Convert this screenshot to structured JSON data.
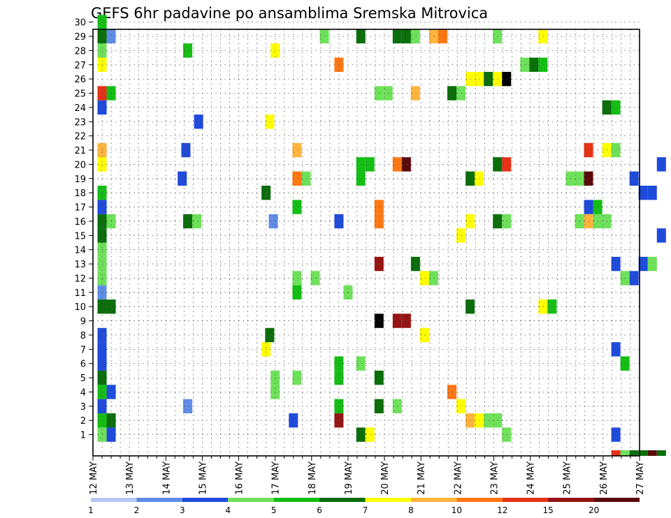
{
  "chart_data": {
    "type": "heatmap",
    "title": "GEFS 6hr padavine po ansamblima Sremska Mitrovica",
    "xlabel": "",
    "ylabel": "",
    "x_ticks": [
      "12 MAY",
      "13 MAY",
      "14 MAY",
      "15 MAY",
      "16 MAY",
      "17 MAY",
      "18 MAY",
      "19 MAY",
      "20 MAY",
      "21 MAY",
      "22 MAY",
      "23 MAY",
      "24 MAY",
      "25 MAY",
      "26 MAY",
      "27 MAY"
    ],
    "xlim": [
      0,
      15
    ],
    "ylim": [
      0,
      30
    ],
    "y_ticks": [
      1,
      2,
      3,
      4,
      5,
      6,
      7,
      8,
      9,
      10,
      11,
      12,
      13,
      14,
      15,
      16,
      17,
      18,
      19,
      20,
      21,
      22,
      23,
      24,
      25,
      26,
      27,
      28,
      29,
      30
    ],
    "grid": true,
    "legend_position": "bottom",
    "colorbar": {
      "labels": [
        "1",
        "2",
        "3",
        "4",
        "5",
        "6",
        "7",
        "8",
        "10",
        "12",
        "15",
        "20"
      ],
      "colors": [
        "#b4c8f5",
        "#5f8ce6",
        "#1e4bdc",
        "#6ee15a",
        "#14be14",
        "#0a6e0a",
        "#ffff00",
        "#ffb43c",
        "#ff7814",
        "#e63214",
        "#961414",
        "#5a0a0a"
      ]
    },
    "cells": [
      [
        0.25,
        1,
        3
      ],
      [
        0.25,
        2,
        4
      ],
      [
        0.25,
        3,
        2
      ],
      [
        0.25,
        4,
        4
      ],
      [
        0.25,
        5,
        5
      ],
      [
        0.25,
        6,
        2
      ],
      [
        0.25,
        7,
        2
      ],
      [
        0.25,
        8,
        2
      ],
      [
        0.25,
        10,
        5
      ],
      [
        0.25,
        11,
        1
      ],
      [
        0.25,
        12,
        3
      ],
      [
        0.25,
        13,
        3
      ],
      [
        0.25,
        14,
        3
      ],
      [
        0.25,
        15,
        5
      ],
      [
        0.25,
        16,
        5
      ],
      [
        0.25,
        17,
        2
      ],
      [
        0.25,
        18,
        4
      ],
      [
        0.25,
        20,
        6
      ],
      [
        0.25,
        21,
        7
      ],
      [
        0.25,
        24,
        2
      ],
      [
        0.25,
        25,
        9
      ],
      [
        0.25,
        27,
        6
      ],
      [
        0.25,
        28,
        3
      ],
      [
        0.25,
        29,
        5
      ],
      [
        0.25,
        30,
        4
      ],
      [
        0.5,
        1,
        2
      ],
      [
        0.5,
        2,
        5
      ],
      [
        0.5,
        4,
        2
      ],
      [
        0.5,
        10,
        5
      ],
      [
        0.5,
        16,
        3
      ],
      [
        0.5,
        25,
        4
      ],
      [
        0.5,
        29,
        1
      ],
      [
        2.6,
        3,
        1
      ],
      [
        2.6,
        16,
        5
      ],
      [
        2.6,
        28,
        4
      ],
      [
        2.85,
        16,
        3
      ],
      [
        2.9,
        23,
        2
      ],
      [
        2.55,
        21,
        2
      ],
      [
        2.45,
        19,
        2
      ],
      [
        4.75,
        7,
        6
      ],
      [
        4.85,
        8,
        5
      ],
      [
        4.75,
        18,
        5
      ],
      [
        4.85,
        23,
        6
      ],
      [
        5.0,
        28,
        6
      ],
      [
        5.0,
        4,
        3
      ],
      [
        5.0,
        5,
        3
      ],
      [
        4.95,
        16,
        1
      ],
      [
        5.6,
        5,
        3
      ],
      [
        5.6,
        12,
        3
      ],
      [
        5.6,
        19,
        8
      ],
      [
        5.85,
        19,
        3
      ],
      [
        5.6,
        21,
        7
      ],
      [
        5.6,
        11,
        4
      ],
      [
        5.6,
        17,
        4
      ],
      [
        5.5,
        2,
        2
      ],
      [
        6.1,
        12,
        3
      ],
      [
        6.35,
        29,
        3
      ],
      [
        6.75,
        2,
        10
      ],
      [
        6.75,
        3,
        4
      ],
      [
        6.75,
        5,
        4
      ],
      [
        6.75,
        6,
        4
      ],
      [
        6.75,
        16,
        2
      ],
      [
        6.75,
        27,
        8
      ],
      [
        7.0,
        11,
        3
      ],
      [
        7.35,
        1,
        5
      ],
      [
        7.6,
        1,
        6
      ],
      [
        7.35,
        6,
        3
      ],
      [
        7.35,
        19,
        4
      ],
      [
        7.35,
        20,
        4
      ],
      [
        7.6,
        20,
        4
      ],
      [
        7.35,
        29,
        5
      ],
      [
        7.85,
        3,
        5
      ],
      [
        7.85,
        5,
        5
      ],
      [
        7.85,
        9,
        12
      ],
      [
        7.85,
        13,
        10
      ],
      [
        7.85,
        16,
        8
      ],
      [
        7.85,
        17,
        8
      ],
      [
        7.85,
        25,
        3
      ],
      [
        8.1,
        25,
        3
      ],
      [
        8.35,
        3,
        3
      ],
      [
        8.35,
        9,
        10
      ],
      [
        8.35,
        20,
        8
      ],
      [
        8.6,
        20,
        11
      ],
      [
        8.6,
        9,
        10
      ],
      [
        8.35,
        29,
        5
      ],
      [
        8.6,
        29,
        5
      ],
      [
        8.85,
        13,
        5
      ],
      [
        8.85,
        29,
        3
      ],
      [
        8.85,
        25,
        7
      ],
      [
        9.1,
        8,
        6
      ],
      [
        9.1,
        12,
        6
      ],
      [
        9.35,
        12,
        3
      ],
      [
        9.35,
        29,
        7
      ],
      [
        9.6,
        29,
        8
      ],
      [
        9.85,
        4,
        8
      ],
      [
        9.85,
        25,
        5
      ],
      [
        10.1,
        25,
        3
      ],
      [
        10.35,
        26,
        6
      ],
      [
        10.6,
        26,
        6
      ],
      [
        10.85,
        26,
        5
      ],
      [
        11.1,
        26,
        6
      ],
      [
        11.35,
        26,
        12
      ],
      [
        10.35,
        2,
        7
      ],
      [
        10.6,
        2,
        6
      ],
      [
        10.85,
        2,
        3
      ],
      [
        11.1,
        2,
        3
      ],
      [
        11.35,
        1,
        3
      ],
      [
        10.1,
        3,
        6
      ],
      [
        10.35,
        10,
        5
      ],
      [
        10.1,
        15,
        6
      ],
      [
        10.35,
        16,
        6
      ],
      [
        10.6,
        19,
        6
      ],
      [
        10.35,
        19,
        5
      ],
      [
        11.1,
        20,
        5
      ],
      [
        11.35,
        20,
        9
      ],
      [
        11.1,
        29,
        3
      ],
      [
        11.85,
        27,
        3
      ],
      [
        12.1,
        27,
        5
      ],
      [
        12.35,
        27,
        4
      ],
      [
        12.35,
        29,
        6
      ],
      [
        11.1,
        16,
        5
      ],
      [
        11.35,
        16,
        3
      ],
      [
        12.35,
        10,
        6
      ],
      [
        12.6,
        10,
        4
      ],
      [
        13.1,
        19,
        3
      ],
      [
        13.35,
        19,
        3
      ],
      [
        13.6,
        19,
        11
      ],
      [
        13.35,
        16,
        3
      ],
      [
        13.6,
        16,
        7
      ],
      [
        13.85,
        16,
        3
      ],
      [
        14.1,
        16,
        3
      ],
      [
        13.6,
        21,
        9
      ],
      [
        14.1,
        21,
        6
      ],
      [
        14.35,
        21,
        3
      ],
      [
        14.1,
        24,
        5
      ],
      [
        14.35,
        24,
        4
      ],
      [
        13.6,
        17,
        2
      ],
      [
        13.85,
        17,
        4
      ],
      [
        14.35,
        1,
        2
      ],
      [
        14.35,
        0,
        9
      ],
      [
        14.6,
        0,
        3
      ],
      [
        14.85,
        0,
        5
      ],
      [
        15.1,
        0,
        5
      ],
      [
        15.35,
        0,
        11
      ],
      [
        15.6,
        0,
        5
      ],
      [
        14.6,
        6,
        4
      ],
      [
        14.35,
        7,
        2
      ],
      [
        14.35,
        13,
        2
      ],
      [
        14.6,
        12,
        3
      ],
      [
        14.85,
        12,
        2
      ],
      [
        15.1,
        13,
        2
      ],
      [
        15.35,
        13,
        3
      ],
      [
        15.1,
        18,
        2
      ],
      [
        15.35,
        18,
        2
      ],
      [
        14.85,
        19,
        2
      ],
      [
        15.6,
        20,
        2
      ],
      [
        15.6,
        15,
        2
      ]
    ]
  }
}
